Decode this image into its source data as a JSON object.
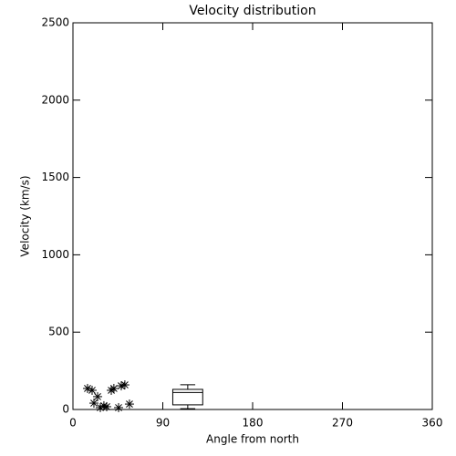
{
  "chart_data": {
    "type": "scatter",
    "title": "Velocity distribution",
    "x_label": "Angle from north",
    "y_label": "Velocity (km/s)",
    "x": [
      14.6,
      19.2,
      24.7,
      21,
      27.4,
      31,
      33.8,
      38.4,
      41,
      48.4,
      52,
      45.7,
      56.6
    ],
    "values": [
      136,
      124,
      83,
      41,
      12,
      24,
      18,
      124,
      136,
      153,
      159,
      12,
      35
    ],
    "color": "#000000",
    "box": {
      "x": 115,
      "width": 30,
      "min": 5,
      "q1": 30,
      "median": 110,
      "q3": 130,
      "max": 160
    },
    "xlim": [
      0,
      360
    ],
    "xticks": [
      0,
      90,
      180,
      270,
      360
    ],
    "ylim": [
      0,
      2500
    ],
    "yticks": [
      0,
      500,
      1000,
      1500,
      2000,
      2500
    ]
  }
}
